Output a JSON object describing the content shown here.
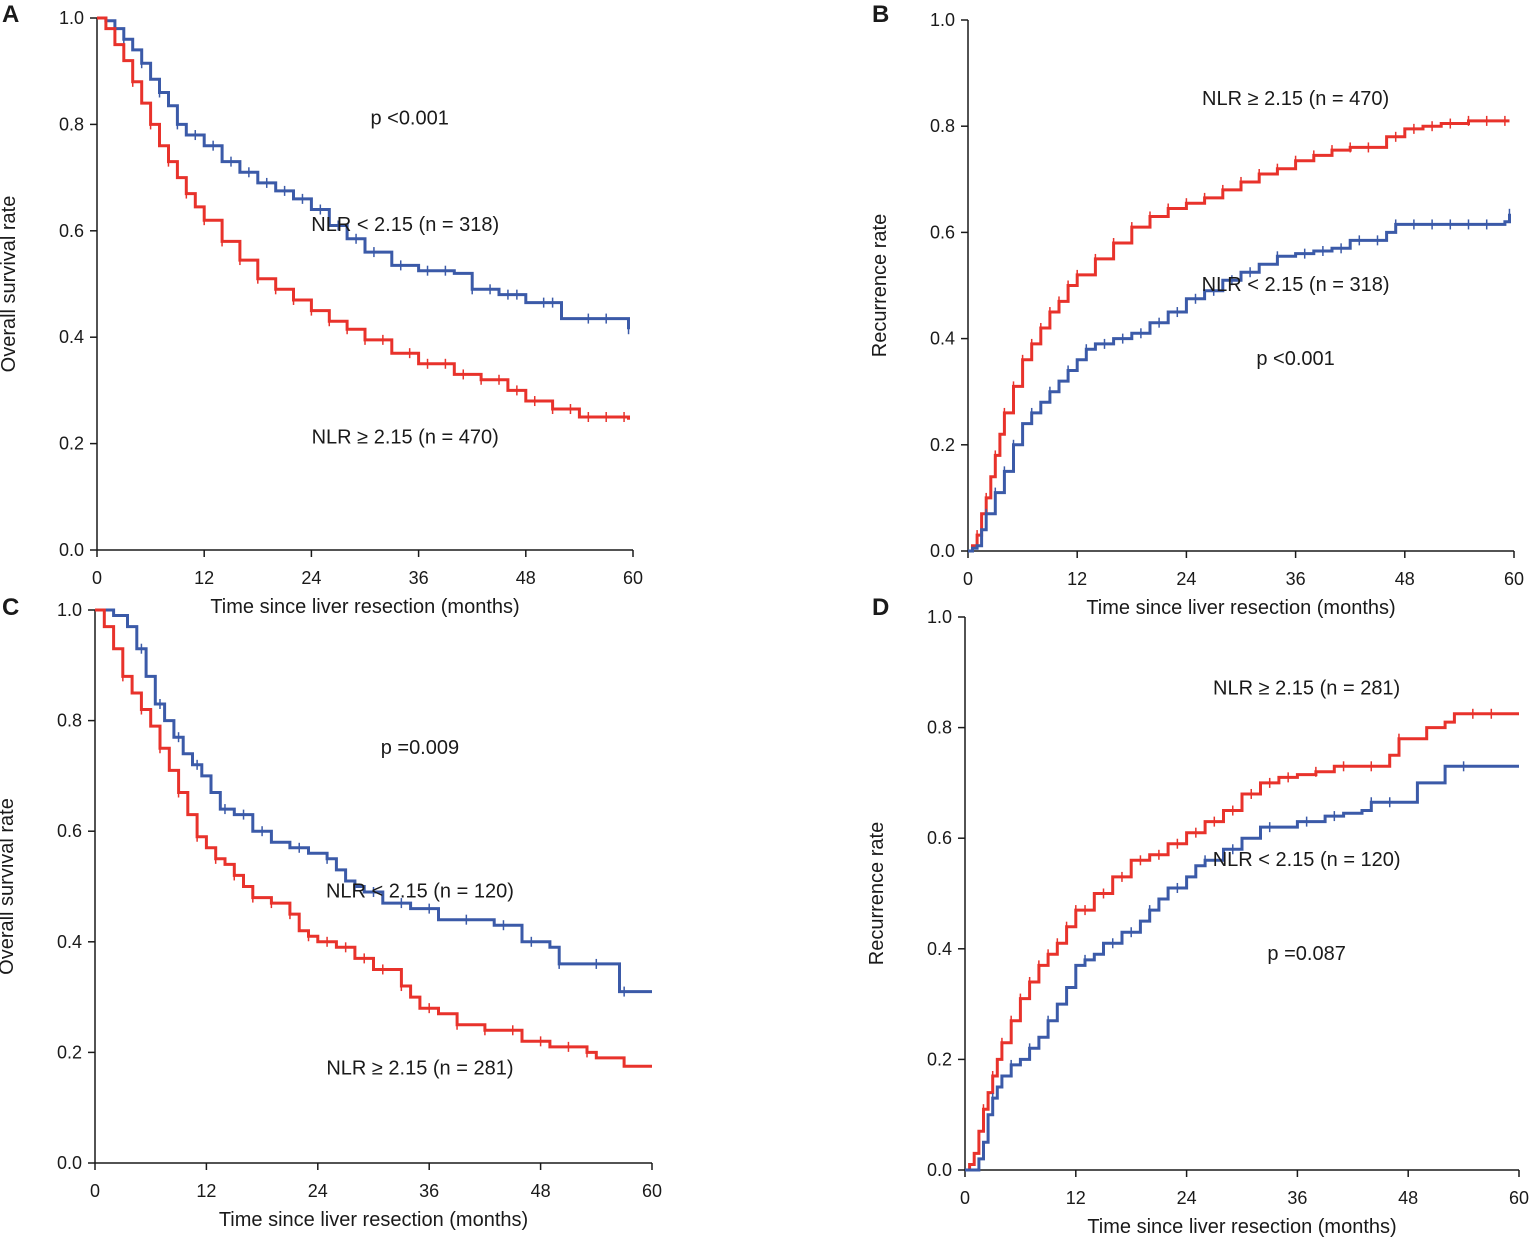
{
  "figure": {
    "description_text": ""
  },
  "colors": {
    "blue": "#3b5aa8",
    "red": "#e8322b",
    "axis": "#1a1a1a"
  },
  "chart_data": [
    {
      "panel": "A",
      "type": "line",
      "step": true,
      "xlabel": "Time since liver resection (months)",
      "ylabel": "Overall survival rate",
      "xlim": [
        0,
        60
      ],
      "ylim": [
        0,
        1
      ],
      "xticks": [
        "0",
        "12",
        "24",
        "36",
        "48",
        "60"
      ],
      "yticks": [
        "0.0",
        "0.2",
        "0.4",
        "0.6",
        "0.8",
        "1.0"
      ],
      "annotations": [
        {
          "text": "p <0.001",
          "x": 35,
          "y": 0.8
        },
        {
          "text": "NLR < 2.15 (n = 318)",
          "x": 34.5,
          "y": 0.6
        },
        {
          "text": "NLR ≥ 2.15 (n = 470)",
          "x": 34.5,
          "y": 0.2
        }
      ],
      "series": [
        {
          "name": "NLR < 2.15 (n = 318)",
          "color": "blue",
          "x": [
            0,
            1,
            2,
            3,
            4,
            5,
            6,
            7,
            8,
            9,
            10,
            12,
            14,
            16,
            18,
            20,
            22,
            24,
            26,
            28,
            30,
            33,
            36,
            40,
            42,
            45,
            48,
            52,
            56,
            59.5
          ],
          "y": [
            1.0,
            0.995,
            0.98,
            0.96,
            0.94,
            0.915,
            0.885,
            0.86,
            0.835,
            0.8,
            0.78,
            0.76,
            0.73,
            0.71,
            0.69,
            0.675,
            0.66,
            0.64,
            0.61,
            0.585,
            0.56,
            0.535,
            0.525,
            0.52,
            0.49,
            0.48,
            0.465,
            0.435,
            0.435,
            0.415
          ],
          "censor_x": [
            3,
            5,
            7,
            9,
            11,
            13,
            15,
            17,
            19,
            21,
            23,
            25,
            27,
            29,
            31,
            34,
            37,
            39,
            42,
            44,
            46,
            47,
            50,
            51,
            55,
            57,
            59.5
          ]
        },
        {
          "name": "NLR ≥ 2.15 (n = 470)",
          "color": "red",
          "x": [
            0,
            1,
            2,
            3,
            4,
            5,
            6,
            7,
            8,
            9,
            10,
            11,
            12,
            14,
            16,
            18,
            20,
            22,
            24,
            26,
            28,
            30,
            33,
            36,
            40,
            43,
            46,
            48,
            51,
            54,
            59.5
          ],
          "y": [
            1.0,
            0.98,
            0.95,
            0.92,
            0.88,
            0.84,
            0.8,
            0.76,
            0.73,
            0.7,
            0.67,
            0.645,
            0.62,
            0.58,
            0.545,
            0.51,
            0.49,
            0.47,
            0.45,
            0.43,
            0.415,
            0.395,
            0.37,
            0.35,
            0.33,
            0.32,
            0.3,
            0.28,
            0.265,
            0.25,
            0.245
          ],
          "censor_x": [
            4,
            6,
            8,
            10,
            12,
            14,
            16,
            18,
            20,
            22,
            24,
            26,
            28,
            30,
            32,
            35,
            37,
            39,
            41,
            43,
            45,
            47,
            49,
            51,
            53,
            55,
            57,
            59
          ]
        }
      ]
    },
    {
      "panel": "B",
      "type": "line",
      "step": true,
      "xlabel": "Time since liver resection (months)",
      "ylabel": "Recurrence rate",
      "xlim": [
        0,
        60
      ],
      "ylim": [
        0,
        1
      ],
      "xticks": [
        "0",
        "12",
        "24",
        "36",
        "48",
        "60"
      ],
      "yticks": [
        "0.0",
        "0.2",
        "0.4",
        "0.6",
        "0.8",
        "1.0"
      ],
      "annotations": [
        {
          "text": "NLR ≥ 2.15 (n = 470)",
          "x": 36,
          "y": 0.84
        },
        {
          "text": "NLR < 2.15 (n = 318)",
          "x": 36,
          "y": 0.49
        },
        {
          "text": "p <0.001",
          "x": 36,
          "y": 0.35
        }
      ],
      "series": [
        {
          "name": "NLR ≥ 2.15 (n = 470)",
          "color": "red",
          "x": [
            0,
            0.5,
            1,
            1.5,
            2,
            2.5,
            3,
            3.5,
            4,
            5,
            6,
            7,
            8,
            9,
            10,
            11,
            12,
            14,
            16,
            18,
            20,
            22,
            24,
            26,
            28,
            30,
            32,
            34,
            36,
            38,
            40,
            42,
            44,
            46,
            48,
            50,
            52,
            55,
            59.5
          ],
          "y": [
            0.0,
            0.01,
            0.03,
            0.07,
            0.1,
            0.14,
            0.18,
            0.22,
            0.26,
            0.31,
            0.36,
            0.39,
            0.42,
            0.45,
            0.47,
            0.5,
            0.52,
            0.55,
            0.58,
            0.61,
            0.63,
            0.645,
            0.655,
            0.665,
            0.68,
            0.695,
            0.71,
            0.72,
            0.735,
            0.745,
            0.755,
            0.76,
            0.76,
            0.78,
            0.795,
            0.8,
            0.805,
            0.81,
            0.81
          ],
          "censor_x": [
            1,
            2,
            3,
            4,
            5,
            6,
            7,
            8,
            9,
            10,
            11,
            12,
            14,
            16,
            18,
            20,
            22,
            24,
            26,
            28,
            30,
            32,
            34,
            36,
            38,
            40,
            42,
            44,
            47,
            49,
            51,
            53,
            55,
            57,
            59
          ]
        },
        {
          "name": "NLR < 2.15 (n = 318)",
          "color": "blue",
          "x": [
            0,
            0.5,
            1,
            1.5,
            2,
            3,
            4,
            5,
            6,
            7,
            8,
            9,
            10,
            11,
            12,
            13,
            14,
            16,
            18,
            20,
            22,
            24,
            26,
            28,
            30,
            32,
            34,
            36,
            38,
            40,
            42,
            44,
            46,
            47,
            50,
            52,
            55,
            59,
            59.5
          ],
          "y": [
            0.0,
            0.005,
            0.01,
            0.04,
            0.07,
            0.11,
            0.15,
            0.2,
            0.24,
            0.26,
            0.28,
            0.3,
            0.32,
            0.34,
            0.36,
            0.38,
            0.39,
            0.4,
            0.41,
            0.43,
            0.45,
            0.475,
            0.49,
            0.51,
            0.525,
            0.54,
            0.555,
            0.56,
            0.565,
            0.57,
            0.585,
            0.585,
            0.6,
            0.615,
            0.615,
            0.615,
            0.615,
            0.62,
            0.635
          ],
          "censor_x": [
            2,
            3,
            4,
            5,
            7,
            9,
            11,
            13,
            15,
            17,
            19,
            21,
            23,
            25,
            27,
            29,
            31,
            34,
            37,
            39,
            41,
            43,
            45,
            47,
            49,
            51,
            53,
            55,
            57,
            59.5
          ]
        }
      ]
    },
    {
      "panel": "C",
      "type": "line",
      "step": true,
      "xlabel": "Time since liver resection (months)",
      "ylabel": "Overall survival rate",
      "xlim": [
        0,
        60
      ],
      "ylim": [
        0,
        1
      ],
      "xticks": [
        "0",
        "12",
        "24",
        "36",
        "48",
        "60"
      ],
      "yticks": [
        "0.0",
        "0.2",
        "0.4",
        "0.6",
        "0.8",
        "1.0"
      ],
      "annotations": [
        {
          "text": "p =0.009",
          "x": 35,
          "y": 0.74
        },
        {
          "text": "NLR < 2.15 (n = 120)",
          "x": 35,
          "y": 0.48
        },
        {
          "text": "NLR ≥ 2.15 (n = 281)",
          "x": 35,
          "y": 0.16
        }
      ],
      "series": [
        {
          "name": "NLR < 2.15 (n = 120)",
          "color": "blue",
          "x": [
            0,
            2,
            3.5,
            4.5,
            5.5,
            6.5,
            7.5,
            8.5,
            9.5,
            10.5,
            11.5,
            12.5,
            13.5,
            15,
            17,
            19,
            21,
            23,
            25,
            26,
            27,
            28,
            29,
            31,
            34,
            37,
            43,
            46,
            49,
            50,
            56.5,
            60
          ],
          "y": [
            1.0,
            0.99,
            0.97,
            0.93,
            0.88,
            0.83,
            0.8,
            0.77,
            0.74,
            0.72,
            0.7,
            0.67,
            0.64,
            0.63,
            0.6,
            0.58,
            0.57,
            0.56,
            0.55,
            0.53,
            0.51,
            0.5,
            0.49,
            0.47,
            0.46,
            0.44,
            0.43,
            0.4,
            0.39,
            0.36,
            0.31,
            0.31
          ],
          "censor_x": [
            5,
            7,
            9,
            11,
            14,
            16,
            18,
            22,
            25,
            28,
            30,
            33,
            36,
            40,
            44,
            47,
            50,
            54,
            57
          ]
        },
        {
          "name": "NLR ≥ 2.15 (n = 281)",
          "color": "red",
          "x": [
            0,
            1,
            2,
            3,
            4,
            5,
            6,
            7,
            8,
            9,
            10,
            11,
            12,
            13,
            14,
            15,
            16,
            17,
            19,
            21,
            22,
            23,
            24,
            26,
            28,
            30,
            32,
            33,
            34,
            35,
            37,
            39,
            42,
            46,
            49,
            53,
            54,
            57,
            60
          ],
          "y": [
            1.0,
            0.97,
            0.93,
            0.88,
            0.85,
            0.82,
            0.79,
            0.75,
            0.71,
            0.67,
            0.63,
            0.59,
            0.57,
            0.55,
            0.54,
            0.52,
            0.5,
            0.48,
            0.47,
            0.45,
            0.42,
            0.41,
            0.4,
            0.39,
            0.37,
            0.35,
            0.35,
            0.32,
            0.3,
            0.28,
            0.27,
            0.25,
            0.24,
            0.22,
            0.21,
            0.2,
            0.19,
            0.175,
            0.175
          ],
          "censor_x": [
            3,
            5,
            7,
            9,
            11,
            13,
            15,
            17,
            19,
            21,
            23,
            25,
            27,
            29,
            31,
            33,
            36,
            39,
            42,
            45,
            48,
            51,
            53
          ]
        }
      ]
    },
    {
      "panel": "D",
      "type": "line",
      "step": true,
      "xlabel": "Time since liver resection (months)",
      "ylabel": "Recurrence rate",
      "xlim": [
        0,
        60
      ],
      "ylim": [
        0,
        1
      ],
      "xticks": [
        "0",
        "12",
        "24",
        "36",
        "48",
        "60"
      ],
      "yticks": [
        "0.0",
        "0.2",
        "0.4",
        "0.6",
        "0.8",
        "1.0"
      ],
      "annotations": [
        {
          "text": "NLR ≥ 2.15 (n = 281)",
          "x": 37,
          "y": 0.86
        },
        {
          "text": "NLR < 2.15 (n = 120)",
          "x": 37,
          "y": 0.55
        },
        {
          "text": "p =0.087",
          "x": 37,
          "y": 0.38
        }
      ],
      "series": [
        {
          "name": "NLR ≥ 2.15 (n = 281)",
          "color": "red",
          "x": [
            0,
            0.5,
            1,
            1.5,
            2,
            2.5,
            3,
            3.5,
            4,
            5,
            6,
            7,
            8,
            9,
            10,
            11,
            12,
            14,
            16,
            18,
            20,
            22,
            24,
            26,
            28,
            30,
            32,
            34,
            36,
            38,
            40,
            42,
            46,
            47,
            50,
            52,
            53,
            60
          ],
          "y": [
            0.0,
            0.01,
            0.03,
            0.07,
            0.11,
            0.14,
            0.17,
            0.2,
            0.23,
            0.27,
            0.31,
            0.34,
            0.37,
            0.39,
            0.41,
            0.44,
            0.47,
            0.5,
            0.53,
            0.56,
            0.57,
            0.59,
            0.61,
            0.63,
            0.65,
            0.68,
            0.7,
            0.71,
            0.715,
            0.72,
            0.73,
            0.73,
            0.75,
            0.78,
            0.8,
            0.81,
            0.825,
            0.825
          ],
          "censor_x": [
            2,
            3,
            4,
            5,
            6,
            7,
            8,
            9,
            10,
            11,
            12,
            13,
            15,
            17,
            19,
            21,
            23,
            25,
            27,
            29,
            31,
            33,
            35,
            38,
            41,
            44,
            47,
            55,
            57
          ]
        },
        {
          "name": "NLR < 2.15 (n = 120)",
          "color": "blue",
          "x": [
            0,
            1,
            1.5,
            2,
            2.5,
            3,
            3.5,
            4,
            5,
            6,
            7,
            8,
            9,
            10,
            11,
            12,
            13,
            14,
            15,
            17,
            19,
            20,
            21,
            22,
            24,
            25,
            26,
            28,
            30,
            32,
            36,
            39,
            41,
            43,
            44,
            46,
            49,
            52,
            60
          ],
          "y": [
            0.0,
            0.0,
            0.02,
            0.05,
            0.1,
            0.13,
            0.15,
            0.17,
            0.19,
            0.2,
            0.22,
            0.24,
            0.27,
            0.3,
            0.33,
            0.37,
            0.38,
            0.39,
            0.41,
            0.43,
            0.45,
            0.47,
            0.49,
            0.51,
            0.53,
            0.55,
            0.56,
            0.58,
            0.6,
            0.62,
            0.63,
            0.64,
            0.645,
            0.65,
            0.665,
            0.665,
            0.7,
            0.73,
            0.73
          ],
          "censor_x": [
            3,
            5,
            7,
            9,
            13,
            16,
            18,
            20,
            23,
            26,
            29,
            33,
            37,
            40,
            44,
            46,
            54
          ]
        }
      ]
    }
  ]
}
